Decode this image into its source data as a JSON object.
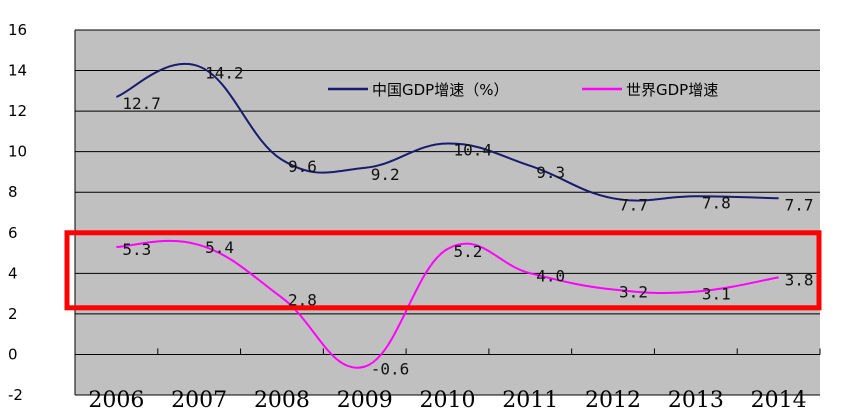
{
  "chart_data": {
    "type": "line",
    "categories": [
      "2006",
      "2007",
      "2008",
      "2009",
      "2010",
      "2011",
      "2012",
      "2013",
      "2014"
    ],
    "ylim": [
      -2,
      16
    ],
    "yticks": [
      "16",
      "14",
      "12",
      "10",
      "8",
      "6",
      "4",
      "2",
      "0",
      "-2"
    ],
    "grid": true,
    "legend_position": "top-right",
    "series": [
      {
        "name": "中国GDP增速（%）",
        "color": "#1a1a6e",
        "values": [
          12.7,
          14.2,
          9.6,
          9.2,
          10.4,
          9.3,
          7.7,
          7.8,
          7.7
        ],
        "labels": [
          "12.7",
          "14.2",
          "9.6",
          "9.2",
          "10.4",
          "9.3",
          "7.7",
          "7.8",
          "7.7"
        ]
      },
      {
        "name": "世界GDP增速",
        "color": "#ff00ff",
        "values": [
          5.3,
          5.4,
          2.8,
          -0.6,
          5.2,
          4.0,
          3.2,
          3.1,
          3.8
        ],
        "labels": [
          "5.3",
          "5.4",
          "2.8",
          "-0.6",
          "5.2",
          "4.0",
          "3.2",
          "3.1",
          "3.8"
        ]
      }
    ],
    "highlight": {
      "ymin": 2.3,
      "ymax": 6.0,
      "color": "#ff0000"
    }
  }
}
